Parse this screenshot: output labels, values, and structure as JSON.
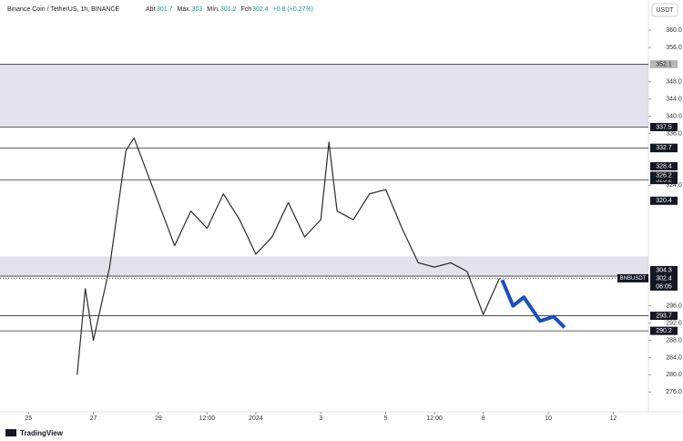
{
  "chart_data": {
    "type": "line",
    "title": "Binance Coin / TetherUS, 1h, BINANCE",
    "ohlc": [
      {
        "label": "Abr",
        "value": 301.7
      },
      {
        "label": "Máx.",
        "value": 303.0
      },
      {
        "label": "Mín.",
        "value": 301.2
      },
      {
        "label": "Fch",
        "value": 302.4
      }
    ],
    "change": "+0.8 (+0.27%)",
    "currency": "USDT",
    "brand": "TradingView",
    "xlim": [
      "2023-12-24T03:00",
      "2024-01-13T02:00"
    ],
    "xticks": [
      {
        "value": "2023-12-25T00:00",
        "label": "25"
      },
      {
        "value": "2023-12-27T00:00",
        "label": "27"
      },
      {
        "value": "2023-12-29T00:00",
        "label": "29"
      },
      {
        "value": "2023-12-30T12:00",
        "label": "12:00"
      },
      {
        "value": "2024-01-01T00:00",
        "label": "2024"
      },
      {
        "value": "2024-01-03T00:00",
        "label": "3"
      },
      {
        "value": "2024-01-05T00:00",
        "label": "5"
      },
      {
        "value": "2024-01-06T12:00",
        "label": "12:00"
      },
      {
        "value": "2024-01-08T00:00",
        "label": "8"
      },
      {
        "value": "2024-01-10T00:00",
        "label": "10"
      },
      {
        "value": "2024-01-12T00:00",
        "label": "12"
      }
    ],
    "ylim": [
      271.4,
      367.0
    ],
    "yticks": [
      {
        "value": 276,
        "label": "276.0"
      },
      {
        "value": 280,
        "label": "280.0"
      },
      {
        "value": 284,
        "label": "284.0"
      },
      {
        "value": 288,
        "label": "288.0"
      },
      {
        "value": 292,
        "label": "292.0"
      },
      {
        "value": 296,
        "label": "296.0"
      },
      {
        "value": 324,
        "label": "324.0"
      },
      {
        "value": 336,
        "label": "336.0"
      },
      {
        "value": 340,
        "label": "340.0"
      },
      {
        "value": 344,
        "label": "344.0"
      },
      {
        "value": 348,
        "label": "348.0"
      },
      {
        "value": 356,
        "label": "356.0"
      },
      {
        "value": 360,
        "label": "360.0"
      }
    ],
    "zones": [
      [
        337.5,
        352.1
      ],
      [
        302.9,
        307.5
      ]
    ],
    "levels": [
      352.1,
      337.5,
      332.6,
      325.2,
      302.9,
      293.7,
      290.2
    ],
    "price_tags": [
      332.7,
      328.4,
      326.2,
      320.4,
      304.3
    ],
    "last_price": {
      "value": 302.4,
      "symbol": "BNBUSDT",
      "countdown": "06:05"
    },
    "series": [
      {
        "color": "#2b2b2b",
        "x": [
          "2023-12-26T12:00",
          "2023-12-26T18:00",
          "2023-12-27T00:00",
          "2023-12-27T12:00",
          "2023-12-28T00:00",
          "2023-12-28T06:00",
          "2023-12-28T12:00",
          "2023-12-29T00:00",
          "2023-12-29T12:00",
          "2023-12-30T00:00",
          "2023-12-30T12:00",
          "2023-12-31T00:00",
          "2023-12-31T12:00",
          "2024-01-01T00:00",
          "2024-01-01T12:00",
          "2024-01-02T00:00",
          "2024-01-02T12:00",
          "2024-01-03T00:00",
          "2024-01-03T06:00",
          "2024-01-03T12:00",
          "2024-01-04T00:00",
          "2024-01-04T12:00",
          "2024-01-05T00:00",
          "2024-01-05T12:00",
          "2024-01-06T00:00",
          "2024-01-06T12:00",
          "2024-01-07T00:00",
          "2024-01-07T12:00",
          "2024-01-08T00:00",
          "2024-01-08T12:00"
        ],
        "values": [
          280,
          300,
          288,
          305,
          332,
          335,
          330,
          320,
          310,
          318,
          314,
          322,
          316,
          308,
          312,
          320,
          312,
          316,
          334,
          318,
          316,
          322,
          323,
          314,
          306,
          305,
          306,
          304,
          294,
          302.4
        ]
      },
      {
        "color": "#1a4fbf",
        "x": [
          "2024-01-08T14:00",
          "2024-01-08T22:00",
          "2024-01-09T06:00",
          "2024-01-09T18:00",
          "2024-01-10T04:00",
          "2024-01-10T12:00"
        ],
        "values": [
          302,
          296,
          298,
          292.5,
          293.5,
          291
        ]
      }
    ]
  }
}
